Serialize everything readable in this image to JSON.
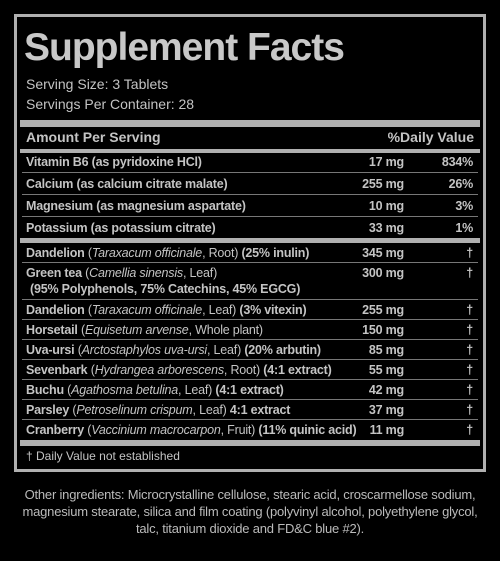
{
  "title": "Supplement Facts",
  "serving_size": "Serving Size: 3 Tablets",
  "servings_per_container": "Servings Per Container: 28",
  "header": {
    "amount": "Amount Per Serving",
    "daily_value": "%Daily Value"
  },
  "groups": [
    {
      "rows": [
        {
          "lines": [
            [
              {
                "text": "Vitamin B6 (as pyridoxine HCl)",
                "style": "bold"
              }
            ]
          ],
          "amount": "17 mg",
          "daily_value": "834%"
        },
        {
          "lines": [
            [
              {
                "text": "Calcium (as calcium citrate malate)",
                "style": "bold"
              }
            ]
          ],
          "amount": "255 mg",
          "daily_value": "26%"
        },
        {
          "lines": [
            [
              {
                "text": "Magnesium (as magnesium aspartate)",
                "style": "bold"
              }
            ]
          ],
          "amount": "10 mg",
          "daily_value": "3%"
        },
        {
          "lines": [
            [
              {
                "text": "Potassium (as potassium citrate)",
                "style": "bold"
              }
            ]
          ],
          "amount": "33 mg",
          "daily_value": "1%"
        }
      ]
    },
    {
      "rows": [
        {
          "lines": [
            [
              {
                "text": "Dandelion",
                "style": "bold"
              },
              {
                "text": " (",
                "style": "normal"
              },
              {
                "text": "Taraxacum officinale",
                "style": "italic"
              },
              {
                "text": ", Root)",
                "style": "normal"
              },
              {
                "text": " (25% inulin)",
                "style": "bold"
              }
            ]
          ],
          "amount": "345 mg",
          "daily_value": "†"
        },
        {
          "lines": [
            [
              {
                "text": "Green tea",
                "style": "bold"
              },
              {
                "text": " (",
                "style": "normal"
              },
              {
                "text": "Camellia sinensis",
                "style": "italic"
              },
              {
                "text": ", Leaf)",
                "style": "normal"
              }
            ],
            [
              {
                "text": "(95% Polyphenols, 75% Catechins, 45% EGCG)",
                "style": "bold"
              }
            ]
          ],
          "amount": "300 mg",
          "daily_value": "†"
        },
        {
          "lines": [
            [
              {
                "text": "Dandelion",
                "style": "bold"
              },
              {
                "text": " (",
                "style": "normal"
              },
              {
                "text": "Taraxacum officinale",
                "style": "italic"
              },
              {
                "text": ", Leaf)",
                "style": "normal"
              },
              {
                "text": " (3% vitexin)",
                "style": "bold"
              }
            ]
          ],
          "amount": "255 mg",
          "daily_value": "†"
        },
        {
          "lines": [
            [
              {
                "text": "Horsetail",
                "style": "bold"
              },
              {
                "text": " (",
                "style": "normal"
              },
              {
                "text": "Equisetum arvense",
                "style": "italic"
              },
              {
                "text": ", Whole plant)",
                "style": "normal"
              }
            ]
          ],
          "amount": "150 mg",
          "daily_value": "†"
        },
        {
          "lines": [
            [
              {
                "text": "Uva-ursi",
                "style": "bold"
              },
              {
                "text": " (",
                "style": "normal"
              },
              {
                "text": "Arctostaphylos uva-ursi",
                "style": "italic"
              },
              {
                "text": ", Leaf)",
                "style": "normal"
              },
              {
                "text": " (20% arbutin)",
                "style": "bold"
              }
            ]
          ],
          "amount": "85 mg",
          "daily_value": "†"
        },
        {
          "lines": [
            [
              {
                "text": "Sevenbark",
                "style": "bold"
              },
              {
                "text": " (",
                "style": "normal"
              },
              {
                "text": "Hydrangea arborescens",
                "style": "italic"
              },
              {
                "text": ", Root)",
                "style": "normal"
              },
              {
                "text": " (4:1 extract)",
                "style": "bold"
              }
            ]
          ],
          "amount": "55 mg",
          "daily_value": "†"
        },
        {
          "lines": [
            [
              {
                "text": "Buchu",
                "style": "bold"
              },
              {
                "text": " (",
                "style": "normal"
              },
              {
                "text": "Agathosma betulina",
                "style": "italic"
              },
              {
                "text": ", Leaf)",
                "style": "normal"
              },
              {
                "text": " (4:1 extract)",
                "style": "bold"
              }
            ]
          ],
          "amount": "42 mg",
          "daily_value": "†"
        },
        {
          "lines": [
            [
              {
                "text": "Parsley",
                "style": "bold"
              },
              {
                "text": " (",
                "style": "normal"
              },
              {
                "text": "Petroselinum crispum",
                "style": "italic"
              },
              {
                "text": ", Leaf)",
                "style": "normal"
              },
              {
                "text": " 4:1 extract",
                "style": "bold"
              }
            ]
          ],
          "amount": "37 mg",
          "daily_value": "†"
        },
        {
          "lines": [
            [
              {
                "text": "Cranberry",
                "style": "bold"
              },
              {
                "text": " (",
                "style": "normal"
              },
              {
                "text": "Vaccinium macrocarpon",
                "style": "italic"
              },
              {
                "text": ", Fruit)",
                "style": "normal"
              },
              {
                "text": " (11% quinic acid)",
                "style": "bold"
              }
            ]
          ],
          "amount": "11 mg",
          "daily_value": "†"
        }
      ]
    }
  ],
  "footnote": "† Daily Value not established",
  "other_ingredients": "Other ingredients: Microcrystalline cellulose, stearic acid, croscarmellose sodium, magnesium stearate, silica and film coating (polyvinyl alcohol, polyethylene glycol, talc, titanium dioxide and FD&C blue #2)."
}
